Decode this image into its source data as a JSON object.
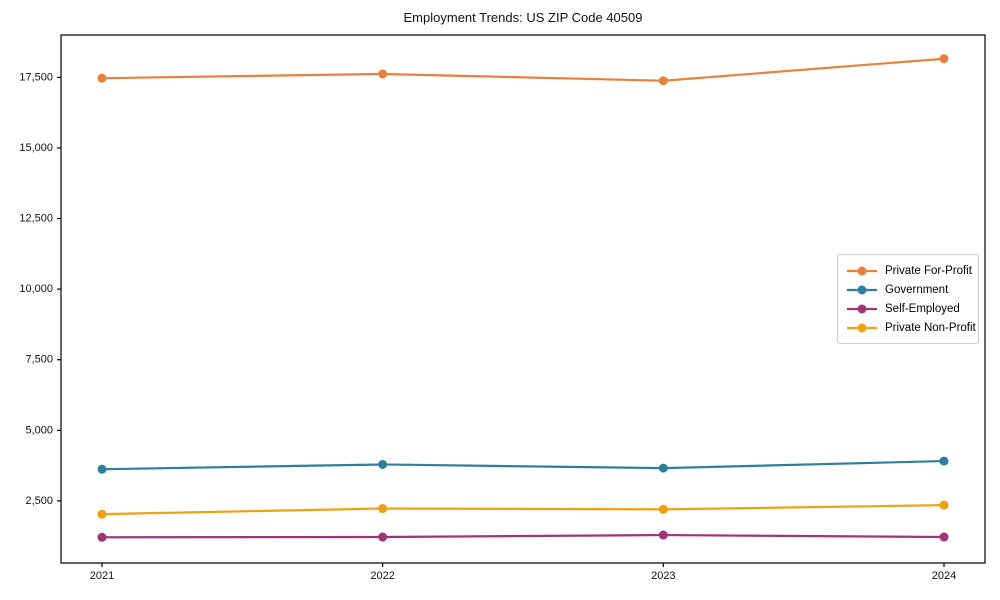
{
  "chart_data": {
    "type": "line",
    "title": "Employment Trends: US ZIP Code 40509",
    "x": [
      2021,
      2022,
      2023,
      2024
    ],
    "x_tick_labels": [
      "2021",
      "2022",
      "2023",
      "2024"
    ],
    "series": [
      {
        "name": "Private For-Profit",
        "color": "#e8813c",
        "values": [
          17470,
          17620,
          17380,
          18160
        ]
      },
      {
        "name": "Government",
        "color": "#2e7f9e",
        "values": [
          3620,
          3790,
          3660,
          3910
        ]
      },
      {
        "name": "Self-Employed",
        "color": "#a03478",
        "values": [
          1210,
          1220,
          1290,
          1220
        ]
      },
      {
        "name": "Private Non-Profit",
        "color": "#f0a011",
        "values": [
          2030,
          2230,
          2200,
          2350
        ]
      }
    ],
    "xlabel": "",
    "ylabel": "",
    "ylim": [
      300,
      19000
    ],
    "yticks": [
      2500,
      5000,
      7500,
      10000,
      12500,
      15000,
      17500
    ],
    "ytick_labels": [
      "2,500",
      "5,000",
      "7,500",
      "10,000",
      "12,500",
      "15,000",
      "17,500"
    ],
    "grid": false,
    "legend_position": "center right",
    "axis_color": "#000000",
    "tick_label_color": "#111111",
    "background_color": "#ffffff"
  }
}
